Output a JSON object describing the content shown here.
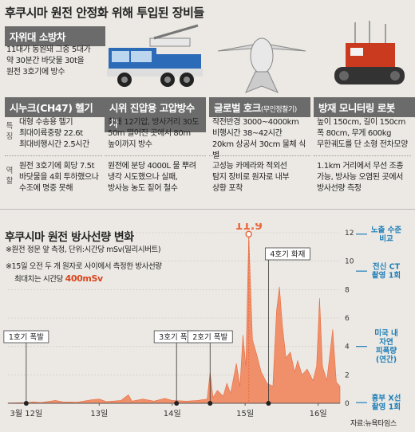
{
  "title": "후쿠시마 원전 안정화 위해 투입된 장비들",
  "sections": {
    "firetruck": {
      "header": "자위대 소방차",
      "lines": [
        "11대가 동원돼 그중 5대가",
        "약 30분간 바닷물 30t을",
        "원전 3호기에 방수"
      ]
    },
    "chinook": {
      "header": "시누크(CH47) 헬기",
      "spec": [
        "대형 수송용 헬기",
        "최대이륙중량 22.6t",
        "최대비행시간 2.5시간"
      ],
      "role": [
        "원전 3호기에 회당 7.5t",
        "바닷물을 4회 투하했으나",
        "수조에 명중 못해"
      ]
    },
    "pump": {
      "header": "시위 진압용 고압방수차",
      "spec": [
        "최대 12기압, 방사거리 30도",
        "50m 떨어진 곳에서 80m",
        "높이까지 방수"
      ],
      "role": [
        "원전에 분당 4000L 물 뿌려",
        "냉각 시도했으나 실패,",
        "방사능 농도 짙어 철수"
      ]
    },
    "globalhawk": {
      "header": "글로벌 호크",
      "header_small": "(무인정찰기)",
      "spec": [
        "작전반경 3000~4000km",
        "비행시간 38~42시간",
        "20km 상공서 30cm 물체 식별"
      ],
      "role": [
        "고성능 카메라와 적외선",
        "탐지 장비로 원자로 내부",
        "상황 포착"
      ]
    },
    "robot": {
      "header": "방재 모니터링 로봇",
      "spec": [
        "높이 150cm, 길이 150cm",
        "폭 80cm, 무게 600kg",
        "무한궤도를 단 소형 전차모양"
      ],
      "role": [
        "1.1km 거리에서 무선 조종",
        "가능, 방사능 오염된 곳에서",
        "방사선량 측정"
      ]
    },
    "row_labels": {
      "spec": [
        "특",
        "징"
      ],
      "role": [
        "역",
        "할"
      ]
    }
  },
  "chart_title": "후쿠시마 원전 방사선량 변화",
  "notes": {
    "n1": "※원전 정문 앞 측정, 단위:시간당 mSv(밀리시버트)",
    "n2": "※15일 오전 두 개 원자로 사이에서 측정한 방사선량",
    "n3_prefix": "최대치는 시간당 ",
    "n3_value": "400mSv"
  },
  "chart_data": {
    "type": "area",
    "color": "#f0906a",
    "peak_label": "11.9",
    "ylim": [
      0,
      12
    ],
    "yticks": [
      "0",
      "2",
      "4",
      "6",
      "8",
      "10",
      "12"
    ],
    "xticks": [
      "3월 12일",
      "13일",
      "14일",
      "15일",
      "16일"
    ],
    "xtick_pos": [
      0,
      1,
      2,
      3,
      4
    ],
    "xlim": [
      -0.25,
      4.3
    ],
    "series": [
      {
        "points": [
          [
            -0.25,
            0.02
          ],
          [
            0.0,
            0.05
          ],
          [
            0.1,
            0.1
          ],
          [
            0.2,
            0.05
          ],
          [
            0.4,
            0.2
          ],
          [
            0.5,
            0.1
          ],
          [
            0.7,
            0.08
          ],
          [
            0.9,
            0.25
          ],
          [
            1.0,
            0.3
          ],
          [
            1.1,
            0.12
          ],
          [
            1.3,
            0.2
          ],
          [
            1.4,
            0.6
          ],
          [
            1.45,
            0.15
          ],
          [
            1.6,
            0.3
          ],
          [
            1.75,
            0.15
          ],
          [
            1.9,
            0.35
          ],
          [
            2.0,
            0.2
          ],
          [
            2.2,
            0.15
          ],
          [
            2.35,
            0.2
          ],
          [
            2.48,
            0.3
          ],
          [
            2.52,
            2.2
          ],
          [
            2.56,
            0.4
          ],
          [
            2.62,
            0.9
          ],
          [
            2.7,
            0.5
          ],
          [
            2.75,
            1.4
          ],
          [
            2.8,
            0.7
          ],
          [
            2.88,
            2.8
          ],
          [
            2.93,
            1.2
          ],
          [
            2.97,
            4.8
          ],
          [
            3.01,
            2.6
          ],
          [
            3.05,
            11.9
          ],
          [
            3.1,
            4.5
          ],
          [
            3.16,
            3.4
          ],
          [
            3.22,
            2.2
          ],
          [
            3.3,
            1.4
          ],
          [
            3.38,
            1.2
          ],
          [
            3.43,
            6.5
          ],
          [
            3.47,
            8.2
          ],
          [
            3.51,
            5.5
          ],
          [
            3.56,
            3.2
          ],
          [
            3.62,
            3.6
          ],
          [
            3.68,
            2.2
          ],
          [
            3.72,
            3.0
          ],
          [
            3.78,
            2.0
          ],
          [
            3.85,
            2.4
          ],
          [
            3.93,
            1.6
          ],
          [
            3.98,
            2.6
          ],
          [
            4.02,
            7.4
          ],
          [
            4.06,
            2.6
          ],
          [
            4.12,
            1.6
          ],
          [
            4.2,
            5.2
          ],
          [
            4.25,
            1.5
          ],
          [
            4.3,
            1.2
          ]
        ]
      }
    ],
    "events": [
      {
        "label": "1호기 폭발",
        "x": 0.0
      },
      {
        "label": "3호기 폭발",
        "x": 2.06
      },
      {
        "label": "2호기 폭발",
        "x": 2.52
      },
      {
        "label": "4호기 화재",
        "x": 3.32
      }
    ],
    "refs": [
      {
        "label": [
          "노출 수준",
          "비교"
        ],
        "y": 11.9
      },
      {
        "label": [
          "전신 CT",
          "촬영 1회"
        ],
        "y": 9.3
      },
      {
        "label": [
          "미국 내",
          "자연",
          "피폭량",
          "(연간)"
        ],
        "y": 4.0
      },
      {
        "label": [
          "흉부 X선",
          "촬영 1회"
        ],
        "y": 0.05
      }
    ]
  },
  "source": "자료:뉴욕타임스"
}
